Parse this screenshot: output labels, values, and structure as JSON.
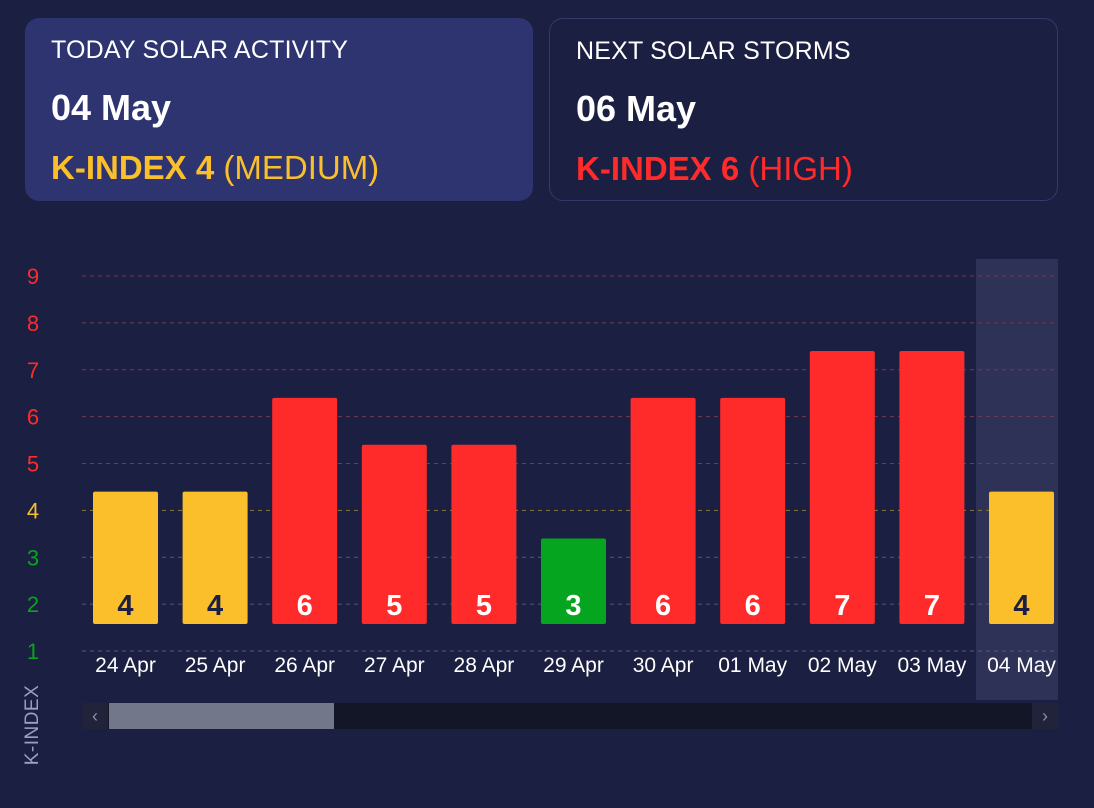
{
  "today": {
    "title": "TODAY SOLAR ACTIVITY",
    "date": "04 May",
    "k_label": "K-INDEX 4",
    "k_level": "(MEDIUM)",
    "color": "#fbbf2b"
  },
  "next": {
    "title": "NEXT SOLAR STORMS",
    "date": "06 May",
    "k_label": "K-INDEX 6",
    "k_level": "(HIGH)",
    "color": "#ff2b2b"
  },
  "scrollbar": {
    "left_arrow": "‹",
    "right_arrow": "›"
  },
  "chart_data": {
    "type": "bar",
    "categories": [
      "24 Apr",
      "25 Apr",
      "26 Apr",
      "27 Apr",
      "28 Apr",
      "29 Apr",
      "30 Apr",
      "01 May",
      "02 May",
      "03 May",
      "04 May"
    ],
    "values": [
      4,
      4,
      6,
      5,
      5,
      3,
      6,
      6,
      7,
      7,
      4
    ],
    "ylabel": "K-INDEX",
    "ylim": [
      1,
      9
    ],
    "yticks": [
      1,
      2,
      3,
      4,
      5,
      6,
      7,
      8,
      9
    ],
    "highlighted_category": "04 May",
    "grid": true,
    "colors": {
      "low": "#06a51f",
      "medium": "#fbbf2b",
      "high": "#ff2b2b"
    }
  }
}
